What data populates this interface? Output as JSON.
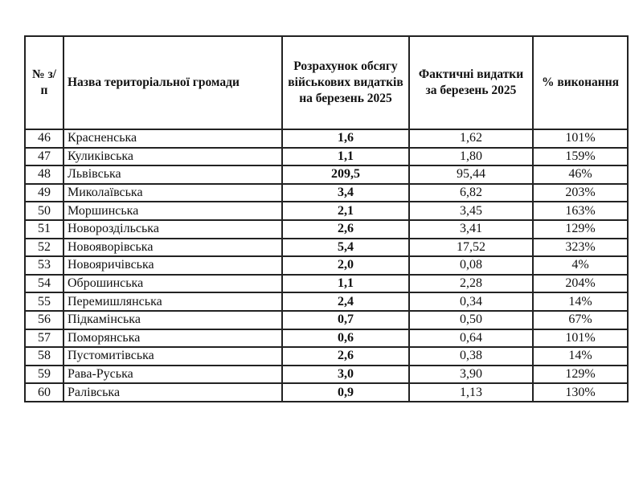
{
  "colors": {
    "text": "#111111",
    "border": "#222222",
    "background": "#ffffff"
  },
  "table": {
    "headers": {
      "num": "№ з/п",
      "name": "Назва територіальної громади",
      "plan": "Розрахунок обсягу військових видатків на березень 2025",
      "fact": "Фактичні видатки за березень 2025",
      "pct": "% виконання"
    },
    "rows": [
      {
        "num": "46",
        "name": "Красненська",
        "plan": "1,6",
        "fact": "1,62",
        "pct": "101%"
      },
      {
        "num": "47",
        "name": "Куликівська",
        "plan": "1,1",
        "fact": "1,80",
        "pct": "159%"
      },
      {
        "num": "48",
        "name": "Львівська",
        "plan": "209,5",
        "fact": "95,44",
        "pct": "46%"
      },
      {
        "num": "49",
        "name": "Миколаївська",
        "plan": "3,4",
        "fact": "6,82",
        "pct": "203%"
      },
      {
        "num": "50",
        "name": "Моршинська",
        "plan": "2,1",
        "fact": "3,45",
        "pct": "163%"
      },
      {
        "num": "51",
        "name": "Новороздільська",
        "plan": "2,6",
        "fact": "3,41",
        "pct": "129%"
      },
      {
        "num": "52",
        "name": "Новояворівська",
        "plan": "5,4",
        "fact": "17,52",
        "pct": "323%"
      },
      {
        "num": "53",
        "name": "Новояричівська",
        "plan": "2,0",
        "fact": "0,08",
        "pct": "4%"
      },
      {
        "num": "54",
        "name": "Оброшинська",
        "plan": "1,1",
        "fact": "2,28",
        "pct": "204%"
      },
      {
        "num": "55",
        "name": "Перемишлянська",
        "plan": "2,4",
        "fact": "0,34",
        "pct": "14%"
      },
      {
        "num": "56",
        "name": "Підкамінська",
        "plan": "0,7",
        "fact": "0,50",
        "pct": "67%"
      },
      {
        "num": "57",
        "name": "Поморянська",
        "plan": "0,6",
        "fact": "0,64",
        "pct": "101%"
      },
      {
        "num": "58",
        "name": "Пустомитівська",
        "plan": "2,6",
        "fact": "0,38",
        "pct": "14%"
      },
      {
        "num": "59",
        "name": "Рава-Руська",
        "plan": "3,0",
        "fact": "3,90",
        "pct": "129%"
      },
      {
        "num": "60",
        "name": "Ралівська",
        "plan": "0,9",
        "fact": "1,13",
        "pct": "130%"
      }
    ]
  }
}
